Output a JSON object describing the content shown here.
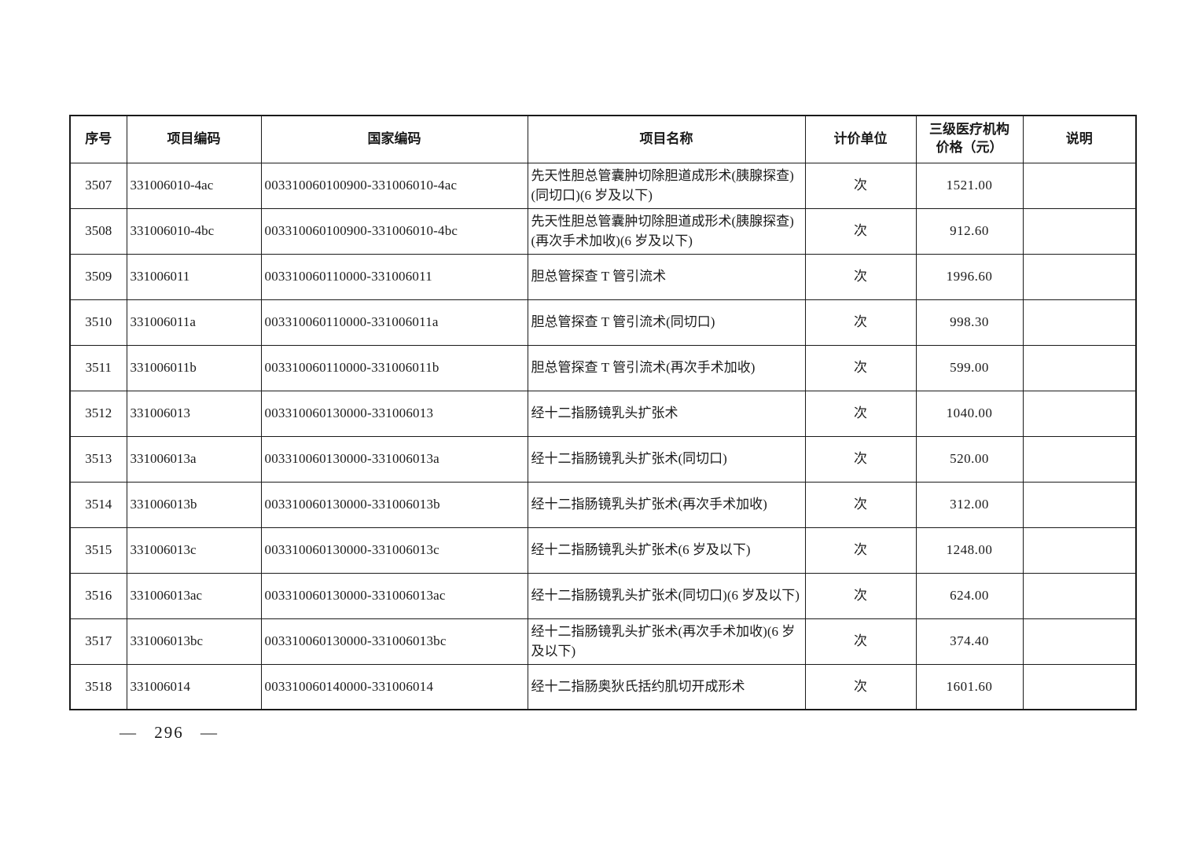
{
  "colors": {
    "background": "#ffffff",
    "border": "#1a1a1a",
    "text": "#1a1a1a"
  },
  "footer": {
    "page_number": "— 296 —"
  },
  "table": {
    "headers": [
      "序号",
      "项目编码",
      "国家编码",
      "项目名称",
      "计价单位",
      "三级医疗机构\n价格（元）",
      "说明"
    ],
    "rows": [
      {
        "seq": "3507",
        "code": "331006010-4ac",
        "national_code": "003310060100900-331006010-4ac",
        "name": "先天性胆总管囊肿切除胆道成形术(胰腺探查)(同切口)(6 岁及以下)",
        "unit": "次",
        "price": "1521.00",
        "note": ""
      },
      {
        "seq": "3508",
        "code": "331006010-4bc",
        "national_code": "003310060100900-331006010-4bc",
        "name": "先天性胆总管囊肿切除胆道成形术(胰腺探查)(再次手术加收)(6 岁及以下)",
        "unit": "次",
        "price": "912.60",
        "note": ""
      },
      {
        "seq": "3509",
        "code": "331006011",
        "national_code": "003310060110000-331006011",
        "name": "胆总管探查 T 管引流术",
        "unit": "次",
        "price": "1996.60",
        "note": ""
      },
      {
        "seq": "3510",
        "code": "331006011a",
        "national_code": "003310060110000-331006011a",
        "name": "胆总管探查 T 管引流术(同切口)",
        "unit": "次",
        "price": "998.30",
        "note": ""
      },
      {
        "seq": "3511",
        "code": "331006011b",
        "national_code": "003310060110000-331006011b",
        "name": "胆总管探查 T 管引流术(再次手术加收)",
        "unit": "次",
        "price": "599.00",
        "note": ""
      },
      {
        "seq": "3512",
        "code": "331006013",
        "national_code": "003310060130000-331006013",
        "name": "经十二指肠镜乳头扩张术",
        "unit": "次",
        "price": "1040.00",
        "note": ""
      },
      {
        "seq": "3513",
        "code": "331006013a",
        "national_code": "003310060130000-331006013a",
        "name": "经十二指肠镜乳头扩张术(同切口)",
        "unit": "次",
        "price": "520.00",
        "note": ""
      },
      {
        "seq": "3514",
        "code": "331006013b",
        "national_code": "003310060130000-331006013b",
        "name": "经十二指肠镜乳头扩张术(再次手术加收)",
        "unit": "次",
        "price": "312.00",
        "note": ""
      },
      {
        "seq": "3515",
        "code": "331006013c",
        "national_code": "003310060130000-331006013c",
        "name": "经十二指肠镜乳头扩张术(6 岁及以下)",
        "unit": "次",
        "price": "1248.00",
        "note": ""
      },
      {
        "seq": "3516",
        "code": "331006013ac",
        "national_code": "003310060130000-331006013ac",
        "name": "经十二指肠镜乳头扩张术(同切口)(6 岁及以下)",
        "unit": "次",
        "price": "624.00",
        "note": ""
      },
      {
        "seq": "3517",
        "code": "331006013bc",
        "national_code": "003310060130000-331006013bc",
        "name": "经十二指肠镜乳头扩张术(再次手术加收)(6 岁及以下)",
        "unit": "次",
        "price": "374.40",
        "note": ""
      },
      {
        "seq": "3518",
        "code": "331006014",
        "national_code": "003310060140000-331006014",
        "name": "经十二指肠奥狄氏括约肌切开成形术",
        "unit": "次",
        "price": "1601.60",
        "note": ""
      }
    ]
  }
}
